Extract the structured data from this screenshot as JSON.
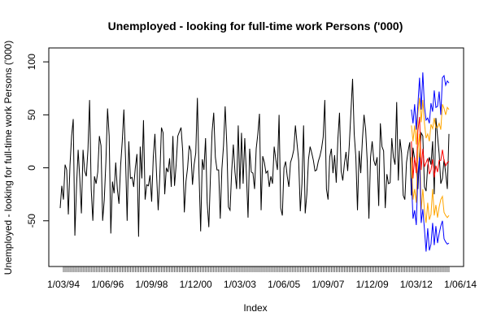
{
  "chart_data": {
    "type": "line",
    "title": "Unemployed - looking for full-time work Persons ('000)",
    "xlabel": "Index",
    "ylabel": "Unemployed - looking for full-time work Persons ('000)",
    "ylim": [
      -87,
      107
    ],
    "y_ticks": [
      -50,
      0,
      50,
      100
    ],
    "x_tick_labels": [
      "1/03/94",
      "1/06/96",
      "1/09/98",
      "1/12/00",
      "1/03/03",
      "1/06/05",
      "1/09/07",
      "1/12/09",
      "1/03/12",
      "1/06/14"
    ],
    "n_observations": 237,
    "series": [
      {
        "name": "",
        "color": "#000000",
        "values": [
          -38,
          -17,
          -30,
          3,
          -2,
          -44,
          2,
          30,
          46,
          -64,
          -18,
          17,
          -10,
          -43,
          17,
          -3,
          -8,
          17,
          64,
          -20,
          -50,
          -8,
          -15,
          -4,
          30,
          21,
          -50,
          -30,
          6,
          56,
          30,
          -62,
          -13,
          -24,
          5,
          -20,
          -34,
          2,
          25,
          55,
          10,
          -50,
          25,
          -10,
          -9,
          -18,
          0,
          13,
          -65,
          20,
          -10,
          45,
          -30,
          -16,
          -17,
          -7,
          -32,
          10,
          32,
          -6,
          -40,
          -8,
          38,
          33,
          -25,
          0,
          -4,
          9,
          -18,
          30,
          -17,
          3,
          30,
          34,
          38,
          16,
          -42,
          -13,
          0,
          21,
          16,
          -16,
          3,
          14,
          66,
          -5,
          -60,
          8,
          -2,
          28,
          -33,
          -56,
          -8,
          34,
          52,
          10,
          -2,
          -2,
          -48,
          -1,
          21,
          58,
          22,
          -37,
          -40,
          -3,
          22,
          -4,
          -20,
          40,
          -20,
          33,
          -15,
          28,
          -5,
          -47,
          18,
          -4,
          -5,
          -20,
          18,
          32,
          51,
          -40,
          11,
          5,
          -5,
          -3,
          -18,
          -8,
          -15,
          20,
          8,
          -2,
          50,
          -38,
          -45,
          0,
          6,
          -8,
          -18,
          5,
          10,
          17,
          40,
          23,
          7,
          -41,
          -15,
          40,
          -43,
          -25,
          8,
          20,
          14,
          7,
          -3,
          -2,
          6,
          11,
          18,
          29,
          64,
          -20,
          -30,
          10,
          18,
          -5,
          12,
          -14,
          27,
          52,
          -3,
          -12,
          4,
          15,
          -3,
          22,
          53,
          84,
          32,
          10,
          -40,
          16,
          -5,
          26,
          50,
          36,
          5,
          -48,
          10,
          25,
          7,
          2,
          10,
          -36,
          42,
          20,
          16,
          -38,
          -6,
          -15,
          -14,
          28,
          10,
          3,
          62,
          -12,
          27,
          14,
          -26,
          -30,
          5,
          16,
          24,
          -26,
          19,
          8,
          1,
          -20,
          13,
          33,
          30,
          -18,
          -22,
          2,
          10,
          3,
          25,
          -25,
          47,
          30,
          13,
          -15,
          -10,
          8,
          -5,
          -20,
          32
        ]
      },
      {
        "name": "",
        "color": "#ff0000",
        "values": [
          25,
          -10,
          10,
          -5,
          35,
          48,
          -2,
          18,
          1,
          5,
          9,
          -6,
          -2,
          8,
          -9,
          2,
          -4,
          7,
          7,
          17,
          7,
          2,
          5,
          6
        ]
      },
      {
        "name": "",
        "color": "#ffa500",
        "values": [
          40,
          25,
          40,
          22,
          52,
          66,
          43,
          64,
          42,
          28,
          32,
          25,
          41,
          37,
          47,
          38,
          38,
          42,
          36,
          60,
          56,
          50,
          57,
          55
        ]
      },
      {
        "name": "",
        "color": "#ffa500",
        "values": [
          10,
          -30,
          -20,
          -33,
          18,
          32,
          -40,
          -20,
          -40,
          -52,
          -33,
          -49,
          -44,
          -20,
          -45,
          -35,
          -47,
          -37,
          -30,
          -27,
          -42,
          -45,
          -47,
          -45
        ]
      },
      {
        "name": "",
        "color": "#0000ff",
        "values": [
          55,
          42,
          60,
          36,
          60,
          85,
          55,
          90,
          58,
          45,
          47,
          42,
          61,
          53,
          73,
          57,
          58,
          72,
          50,
          85,
          87,
          78,
          82,
          80
        ]
      },
      {
        "name": "",
        "color": "#0000ff",
        "values": [
          -10,
          -48,
          -40,
          -54,
          -5,
          10,
          -52,
          -39,
          -58,
          -79,
          -57,
          -78,
          -72,
          -52,
          -73,
          -55,
          -71,
          -62,
          -55,
          -50,
          -67,
          -70,
          -72,
          -71
        ]
      }
    ]
  }
}
